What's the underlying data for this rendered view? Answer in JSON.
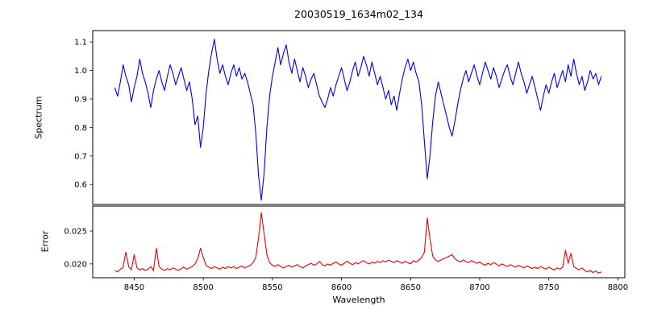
{
  "chart_data": {
    "type": "line",
    "title": "20030519_1634m02_134",
    "xlabel": "Wavelength",
    "grid": false,
    "legend": "none",
    "background": "#ffffff",
    "xlim": [
      8420,
      8805
    ],
    "x_start": 8436,
    "x_step": 2,
    "xtick_values": [
      8450,
      8500,
      8550,
      8600,
      8650,
      8700,
      8750,
      8800
    ],
    "xtick_labels": [
      "8450",
      "8500",
      "8550",
      "8600",
      "8650",
      "8700",
      "8750",
      "8800"
    ],
    "panels": [
      {
        "name": "spectrum",
        "ylabel": "Spectrum",
        "color": "#0000ee",
        "ylim": [
          0.53,
          1.14
        ],
        "ytick_values": [
          0.6,
          0.7,
          0.8,
          0.9,
          1.0,
          1.1
        ],
        "ytick_labels": [
          "0.6",
          "0.7",
          "0.8",
          "0.9",
          "1.0",
          "1.1"
        ],
        "values": [
          0.94,
          0.91,
          0.96,
          1.02,
          0.98,
          0.95,
          0.89,
          0.94,
          0.98,
          1.04,
          0.99,
          0.96,
          0.92,
          0.87,
          0.93,
          0.97,
          1.0,
          0.96,
          0.93,
          0.98,
          1.02,
          0.99,
          0.95,
          0.98,
          1.01,
          0.97,
          0.93,
          0.96,
          0.9,
          0.81,
          0.84,
          0.73,
          0.8,
          0.92,
          1.0,
          1.06,
          1.11,
          1.04,
          0.99,
          1.02,
          0.98,
          0.95,
          0.99,
          1.02,
          0.98,
          1.01,
          0.97,
          0.99,
          0.96,
          0.92,
          0.88,
          0.78,
          0.63,
          0.545,
          0.64,
          0.8,
          0.91,
          0.98,
          1.03,
          1.08,
          1.02,
          1.06,
          1.09,
          1.03,
          0.99,
          1.04,
          1.0,
          0.96,
          1.01,
          0.98,
          0.94,
          0.97,
          0.99,
          0.95,
          0.91,
          0.89,
          0.87,
          0.9,
          0.94,
          0.91,
          0.95,
          0.98,
          1.01,
          0.97,
          0.93,
          0.96,
          1.0,
          1.03,
          0.98,
          1.01,
          1.05,
          1.02,
          0.98,
          1.03,
          0.99,
          0.95,
          0.98,
          0.94,
          0.9,
          0.93,
          0.88,
          0.91,
          0.86,
          0.92,
          0.97,
          1.01,
          1.04,
          1.0,
          1.03,
          0.99,
          0.96,
          0.88,
          0.75,
          0.62,
          0.7,
          0.82,
          0.91,
          0.96,
          0.92,
          0.88,
          0.84,
          0.8,
          0.77,
          0.82,
          0.88,
          0.93,
          0.97,
          1.0,
          0.96,
          0.99,
          1.02,
          0.98,
          0.95,
          0.99,
          1.03,
          1.0,
          0.97,
          1.01,
          0.98,
          0.94,
          0.97,
          1.0,
          1.02,
          0.98,
          0.95,
          0.99,
          1.03,
          0.99,
          0.96,
          0.92,
          0.95,
          0.98,
          0.94,
          0.9,
          0.86,
          0.91,
          0.95,
          0.92,
          0.96,
          0.99,
          0.94,
          0.97,
          1.0,
          0.96,
          1.02,
          0.98,
          1.04,
          0.99,
          0.95,
          0.98,
          0.93,
          0.96,
          1.0,
          0.97,
          0.99,
          0.95,
          0.98
        ]
      },
      {
        "name": "error",
        "ylabel": "Error",
        "color": "#ee0000",
        "ylim": [
          0.0179,
          0.0288
        ],
        "ytick_values": [
          0.02,
          0.025
        ],
        "ytick_labels": [
          "0.020",
          "0.025"
        ],
        "values": [
          0.019,
          0.0188,
          0.0192,
          0.0195,
          0.0218,
          0.0196,
          0.0191,
          0.0214,
          0.0194,
          0.0191,
          0.0193,
          0.019,
          0.0192,
          0.0196,
          0.019,
          0.0224,
          0.0196,
          0.0192,
          0.019,
          0.0193,
          0.0191,
          0.0194,
          0.0192,
          0.019,
          0.0193,
          0.0195,
          0.0192,
          0.0194,
          0.0196,
          0.02,
          0.0208,
          0.0224,
          0.021,
          0.0198,
          0.0195,
          0.0193,
          0.0196,
          0.0194,
          0.0192,
          0.0195,
          0.0193,
          0.0196,
          0.0194,
          0.0196,
          0.0193,
          0.0195,
          0.0197,
          0.0194,
          0.0196,
          0.0198,
          0.0202,
          0.021,
          0.024,
          0.0278,
          0.0246,
          0.0214,
          0.0202,
          0.0198,
          0.0196,
          0.0199,
          0.0196,
          0.0194,
          0.0196,
          0.0198,
          0.0195,
          0.0197,
          0.0199,
          0.0196,
          0.0194,
          0.0197,
          0.0199,
          0.0201,
          0.0198,
          0.02,
          0.0204,
          0.0199,
          0.0197,
          0.02,
          0.0198,
          0.0201,
          0.0203,
          0.02,
          0.0198,
          0.0201,
          0.0204,
          0.0201,
          0.0199,
          0.0202,
          0.02,
          0.0203,
          0.0205,
          0.0202,
          0.02,
          0.0203,
          0.0201,
          0.0204,
          0.0202,
          0.0205,
          0.0203,
          0.0206,
          0.0204,
          0.0202,
          0.0205,
          0.0203,
          0.0201,
          0.0204,
          0.0202,
          0.02,
          0.0205,
          0.0203,
          0.0206,
          0.021,
          0.0218,
          0.027,
          0.0238,
          0.0212,
          0.0206,
          0.0204,
          0.0206,
          0.0208,
          0.021,
          0.0212,
          0.0214,
          0.0208,
          0.0205,
          0.0203,
          0.0206,
          0.0204,
          0.0202,
          0.0205,
          0.0203,
          0.0201,
          0.0203,
          0.02,
          0.0198,
          0.0201,
          0.0199,
          0.0202,
          0.02,
          0.0197,
          0.02,
          0.0198,
          0.0196,
          0.0199,
          0.0197,
          0.0195,
          0.0198,
          0.0196,
          0.0194,
          0.0197,
          0.0195,
          0.0193,
          0.0195,
          0.0193,
          0.0196,
          0.0194,
          0.0192,
          0.0195,
          0.0193,
          0.0191,
          0.0194,
          0.0192,
          0.0195,
          0.0221,
          0.0201,
          0.0216,
          0.0196,
          0.0193,
          0.0191,
          0.0194,
          0.019,
          0.0188,
          0.019,
          0.0187,
          0.0189,
          0.0186,
          0.0188
        ]
      }
    ]
  }
}
